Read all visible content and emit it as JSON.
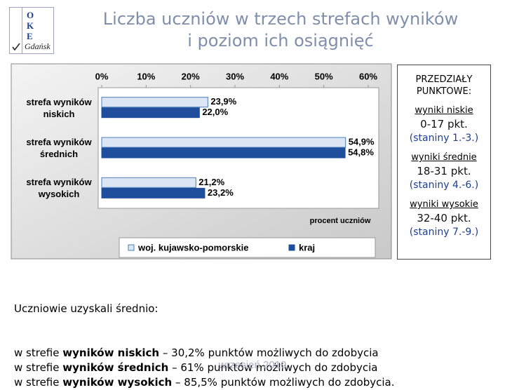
{
  "logo": {
    "letters": [
      "O",
      "K",
      "E"
    ],
    "city": "Gdańsk"
  },
  "title_lines": [
    "Liczba uczniów w trzech strefach wyników",
    "i poziom ich osiągnięć"
  ],
  "chart_data": {
    "type": "bar",
    "orientation": "horizontal",
    "categories": [
      "strefa wyników niskich",
      "strefa wyników średnich",
      "strefa wyników wysokich"
    ],
    "series": [
      {
        "name": "woj. kujawsko-pomorskie",
        "color": "#dce6f4",
        "border": "#4a7ebb",
        "values": [
          23.9,
          54.9,
          21.2
        ],
        "value_labels": [
          "23,9%",
          "54,9%",
          "21,2%"
        ]
      },
      {
        "name": "kraj",
        "color": "#1f4e9c",
        "border": "#1f4e9c",
        "values": [
          22.0,
          54.8,
          23.2
        ],
        "value_labels": [
          "22,0%",
          "54,8%",
          "23,2%"
        ]
      }
    ],
    "xlabel": "procent uczniów",
    "xlim": [
      0,
      60
    ],
    "xticks": [
      {
        "value": 0,
        "label": "0%"
      },
      {
        "value": 10,
        "label": "10%"
      },
      {
        "value": 20,
        "label": "20%"
      },
      {
        "value": 30,
        "label": "30%"
      },
      {
        "value": 40,
        "label": "40%"
      },
      {
        "value": 50,
        "label": "50%"
      },
      {
        "value": 60,
        "label": "60%"
      }
    ],
    "grid": false,
    "legend": "bottom"
  },
  "ranges": {
    "title": "PRZEDZIAŁY PUNKTOWE:",
    "items": [
      {
        "name": "wyniki niskie",
        "points": "0-17 pkt.",
        "stanines": "(staniny 1.-3.)"
      },
      {
        "name": "wyniki średnie",
        "points": "18-31 pkt.",
        "stanines": "(staniny 4.-6.)"
      },
      {
        "name": "wyniki wysokie",
        "points": "32-40 pkt.",
        "stanines": "(staniny 7.-9.)"
      }
    ]
  },
  "summary": {
    "intro": "Uczniowie uzyskali średnio:",
    "lines": [
      {
        "prefix": "w strefie ",
        "bold": "wyników niskich",
        "suffix": " – 30,2% punktów możliwych do zdobycia"
      },
      {
        "prefix": "w strefie ",
        "bold": "wyników średnich",
        "suffix": " – 61% punktów możliwych do zdobycia"
      },
      {
        "prefix": "w strefie ",
        "bold": "wyników wysokich",
        "suffix": " – 85,5% punktów możliwych do zdobycia."
      }
    ]
  },
  "footer": "wrzesień 2010"
}
